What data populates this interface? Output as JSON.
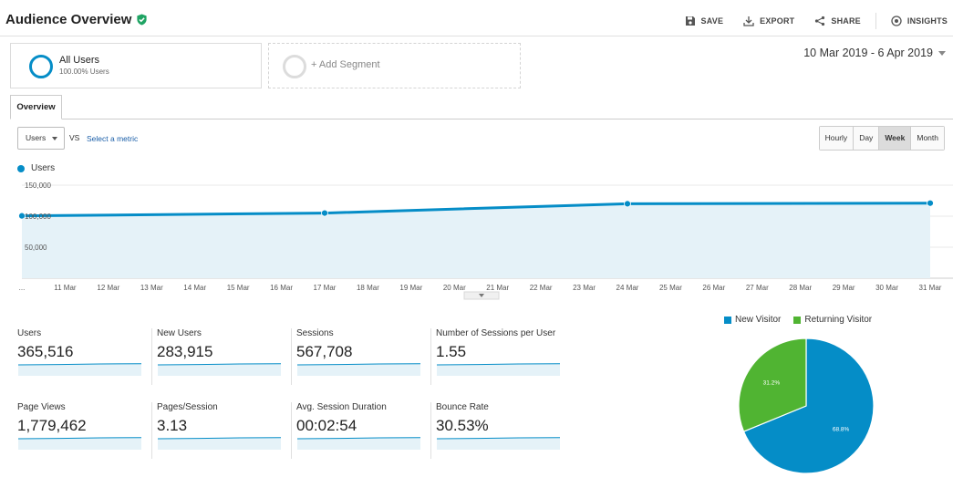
{
  "header": {
    "title": "Audience Overview",
    "actions": {
      "save": "SAVE",
      "export": "EXPORT",
      "share": "SHARE",
      "insights": "INSIGHTS"
    }
  },
  "segments": {
    "all_users": {
      "name": "All Users",
      "percent": "100.00% Users"
    },
    "add_segment": "+ Add Segment"
  },
  "date_range": "10 Mar 2019 - 6 Apr 2019",
  "tabs": {
    "overview": "Overview"
  },
  "controls": {
    "metric": "Users",
    "vs": "VS",
    "select_metric": "Select a metric",
    "granularity": [
      "Hourly",
      "Day",
      "Week",
      "Month"
    ],
    "active_granularity": "Week"
  },
  "chart_data": {
    "type": "area",
    "legend": "Users",
    "y_ticks": [
      "150,000",
      "100,000",
      "50,000"
    ],
    "ylim": [
      0,
      150000
    ],
    "x_labels": [
      "...",
      "11 Mar",
      "12 Mar",
      "13 Mar",
      "14 Mar",
      "15 Mar",
      "16 Mar",
      "17 Mar",
      "18 Mar",
      "19 Mar",
      "20 Mar",
      "21 Mar",
      "22 Mar",
      "23 Mar",
      "24 Mar",
      "25 Mar",
      "26 Mar",
      "27 Mar",
      "28 Mar",
      "29 Mar",
      "30 Mar",
      "31 Mar"
    ],
    "points": [
      {
        "x": "10 Mar",
        "y": 100500
      },
      {
        "x": "17 Mar",
        "y": 105000
      },
      {
        "x": "24 Mar",
        "y": 120000
      },
      {
        "x": "31 Mar",
        "y": 121000
      }
    ],
    "color": "#058dc7"
  },
  "scorecards": [
    {
      "label": "Users",
      "value": "365,516"
    },
    {
      "label": "New Users",
      "value": "283,915"
    },
    {
      "label": "Sessions",
      "value": "567,708"
    },
    {
      "label": "Number of Sessions per User",
      "value": "1.55"
    },
    {
      "label": "Page Views",
      "value": "1,779,462"
    },
    {
      "label": "Pages/Session",
      "value": "3.13"
    },
    {
      "label": "Avg. Session Duration",
      "value": "00:02:54"
    },
    {
      "label": "Bounce Rate",
      "value": "30.53%"
    }
  ],
  "pie": {
    "legend": [
      {
        "name": "New Visitor",
        "color": "#058dc7"
      },
      {
        "name": "Returning Visitor",
        "color": "#50b432"
      }
    ],
    "slices": [
      {
        "name": "New Visitor",
        "value": 68.8,
        "label": "68.8%"
      },
      {
        "name": "Returning Visitor",
        "value": 31.2,
        "label": "31.2%"
      }
    ]
  },
  "colors": {
    "accent": "#058dc7",
    "secondary": "#50b432",
    "check": "#20a464"
  }
}
